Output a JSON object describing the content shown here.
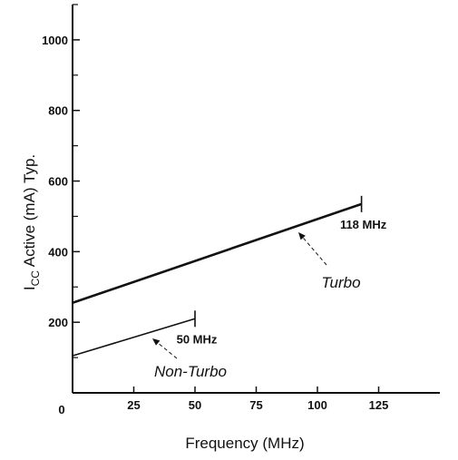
{
  "chart_data": {
    "type": "line",
    "xlabel": "Frequency (MHz)",
    "ylabel_main": "I",
    "ylabel_sub": "CC",
    "ylabel_rest": " Active (mA) Typ.",
    "xlim": [
      0,
      150
    ],
    "ylim": [
      0,
      1100
    ],
    "x_ticks": [
      25,
      50,
      75,
      100,
      125
    ],
    "x_tick_labels": [
      "25",
      "50",
      "75",
      "100",
      "125"
    ],
    "y_ticks": [
      200,
      400,
      600,
      800,
      1000
    ],
    "y_tick_labels": [
      "200",
      "400",
      "600",
      "800",
      "1000"
    ],
    "origin_label": "0",
    "minor_y_ticks": [
      100,
      300,
      500,
      700,
      900,
      1100
    ],
    "grid": false,
    "legend": "none",
    "series": [
      {
        "name": "Turbo",
        "x": [
          0,
          118
        ],
        "y": [
          255,
          535
        ],
        "color": "#111111"
      },
      {
        "name": "Non-Turbo",
        "x": [
          0,
          50
        ],
        "y": [
          105,
          210
        ],
        "color": "#111111"
      }
    ],
    "annotations": [
      {
        "text": "118 MHz",
        "x": 118,
        "y": 535
      },
      {
        "text": "50 MHz",
        "x": 50,
        "y": 210
      }
    ]
  }
}
